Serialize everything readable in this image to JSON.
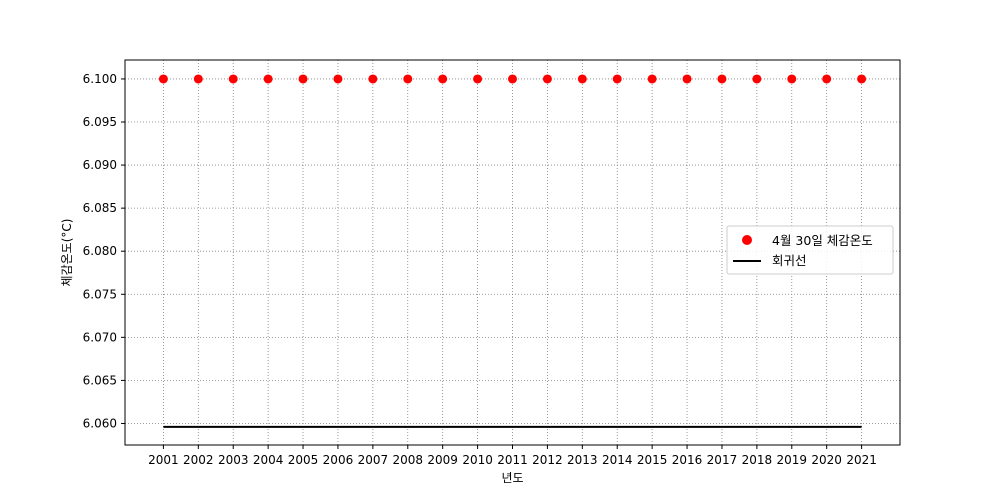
{
  "chart_data": {
    "type": "scatter",
    "title": "",
    "xlabel": "년도",
    "ylabel": "체감온도(°C)",
    "xlim": [
      1999.9,
      2022.1
    ],
    "ylim": [
      6.0575,
      6.1022
    ],
    "x_ticks": [
      2001,
      2002,
      2003,
      2004,
      2005,
      2006,
      2007,
      2008,
      2009,
      2010,
      2011,
      2012,
      2013,
      2014,
      2015,
      2016,
      2017,
      2018,
      2019,
      2020,
      2021
    ],
    "y_ticks": [
      6.06,
      6.065,
      6.07,
      6.075,
      6.08,
      6.085,
      6.09,
      6.095,
      6.1
    ],
    "y_tick_labels": [
      "6.060",
      "6.065",
      "6.070",
      "6.075",
      "6.080",
      "6.085",
      "6.090",
      "6.095",
      "6.100"
    ],
    "grid": true,
    "legend_position": "center-right",
    "series": [
      {
        "name": "4월 30일 체감온도",
        "kind": "scatter",
        "color": "#ff0000",
        "x": [
          2001,
          2002,
          2003,
          2004,
          2005,
          2006,
          2007,
          2008,
          2009,
          2010,
          2011,
          2012,
          2013,
          2014,
          2015,
          2016,
          2017,
          2018,
          2019,
          2020,
          2021
        ],
        "y": [
          6.1,
          6.1,
          6.1,
          6.1,
          6.1,
          6.1,
          6.1,
          6.1,
          6.1,
          6.1,
          6.1,
          6.1,
          6.1,
          6.1,
          6.1,
          6.1,
          6.1,
          6.1,
          6.1,
          6.1,
          6.1
        ]
      },
      {
        "name": "회귀선",
        "kind": "line",
        "color": "#000000",
        "x": [
          2001,
          2021
        ],
        "y": [
          6.0596,
          6.0596
        ]
      }
    ]
  }
}
